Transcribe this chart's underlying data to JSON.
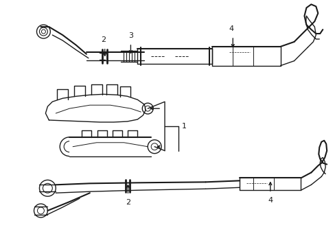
{
  "background_color": "#ffffff",
  "line_color": "#1a1a1a",
  "lw": 1.0,
  "fig_width": 4.89,
  "fig_height": 3.6,
  "dpi": 100,
  "label_fs": 8
}
